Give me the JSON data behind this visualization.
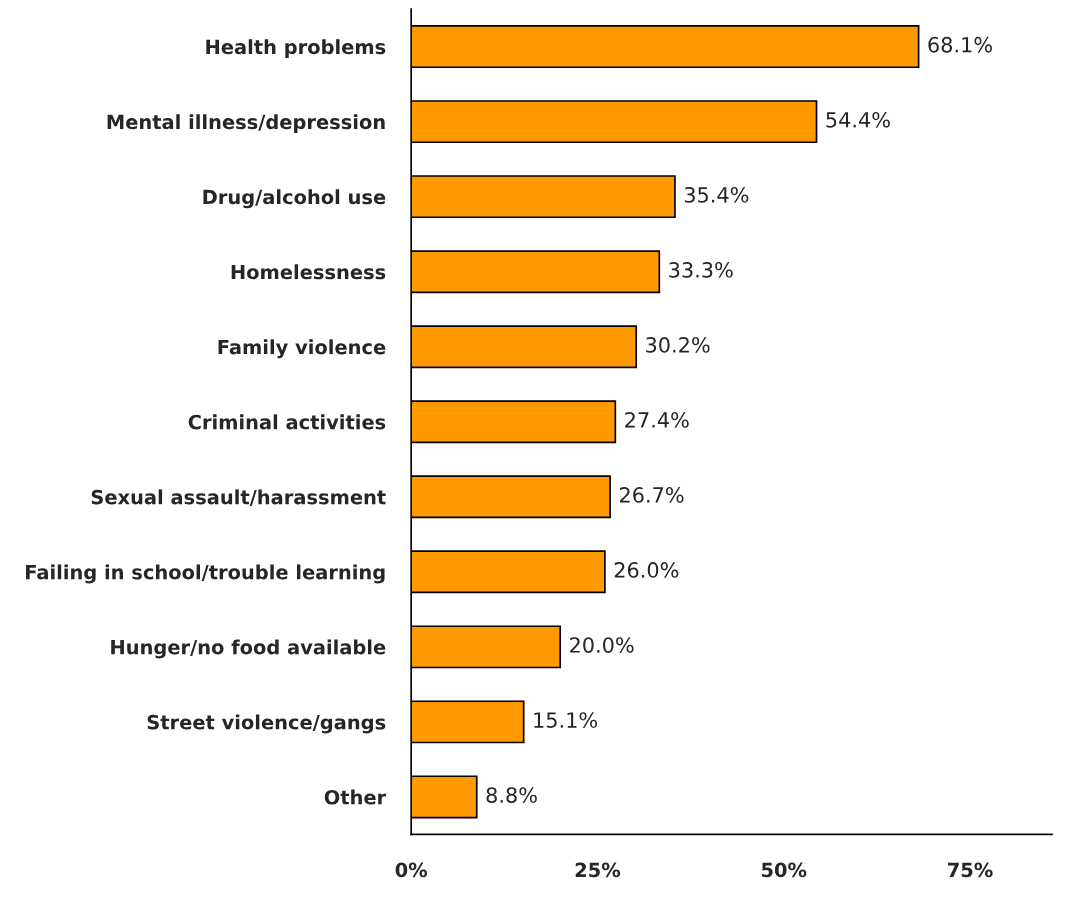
{
  "chart_data": {
    "type": "bar",
    "orientation": "horizontal",
    "categories": [
      "Health problems",
      "Mental illness/depression",
      "Drug/alcohol use",
      "Homelessness",
      "Family violence",
      "Criminal activities",
      "Sexual assault/harassment",
      "Failing in school/trouble learning",
      "Hunger/no food available",
      "Street violence/gangs",
      "Other"
    ],
    "values": [
      68.1,
      54.4,
      35.4,
      33.3,
      30.2,
      27.4,
      26.7,
      26.0,
      20.0,
      15.1,
      8.8
    ],
    "value_labels": [
      "68.1%",
      "54.4%",
      "35.4%",
      "33.3%",
      "30.2%",
      "27.4%",
      "26.7%",
      "26.0%",
      "20.0%",
      "15.1%",
      "8.8%"
    ],
    "color": "#ff9900",
    "xlim": [
      0,
      86
    ],
    "xticks": [
      {
        "value": 0,
        "label": "0%"
      },
      {
        "value": 25,
        "label": "25%"
      },
      {
        "value": 50,
        "label": "50%"
      },
      {
        "value": 75,
        "label": "75%"
      }
    ],
    "grid": false,
    "legend": false
  }
}
